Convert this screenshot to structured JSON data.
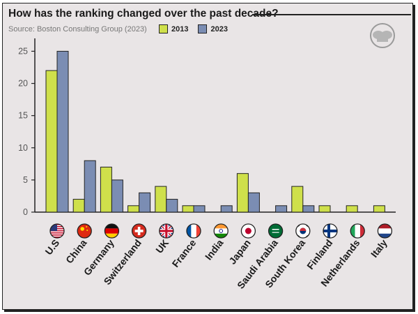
{
  "chart_data": {
    "type": "bar",
    "title": "How has the ranking changed over the past decade?",
    "subtitle": "Source: Boston Consulting Group (2023)",
    "xlabel": "",
    "ylabel": "",
    "ylim": [
      0,
      27
    ],
    "yticks": [
      0,
      5,
      10,
      15,
      20,
      25
    ],
    "grid": false,
    "legend_position": "top",
    "categories": [
      "U.S",
      "China",
      "Germany",
      "Switzerland",
      "UK",
      "France",
      "India",
      "Japan",
      "Saudi Arabia",
      "South Korea",
      "Finland",
      "Netherlands",
      "Italy"
    ],
    "series": [
      {
        "name": "2013",
        "color": "#cfe04b",
        "values": [
          22,
          2,
          7,
          1,
          4,
          1,
          0,
          6,
          0,
          4,
          1,
          1,
          1
        ]
      },
      {
        "name": "2023",
        "color": "#7b8db3",
        "values": [
          25,
          8,
          5,
          3,
          2,
          1,
          1,
          3,
          1,
          1,
          0,
          0,
          0
        ]
      }
    ],
    "flags": [
      "us-flag-icon",
      "china-flag-icon",
      "germany-flag-icon",
      "switzerland-flag-icon",
      "uk-flag-icon",
      "france-flag-icon",
      "india-flag-icon",
      "japan-flag-icon",
      "saudi-arabia-flag-icon",
      "south-korea-flag-icon",
      "finland-flag-icon",
      "netherlands-flag-icon",
      "italy-flag-icon"
    ]
  },
  "colors": {
    "background": "#e9e5e6",
    "axis": "#222222",
    "text": "#1a1a1a"
  }
}
